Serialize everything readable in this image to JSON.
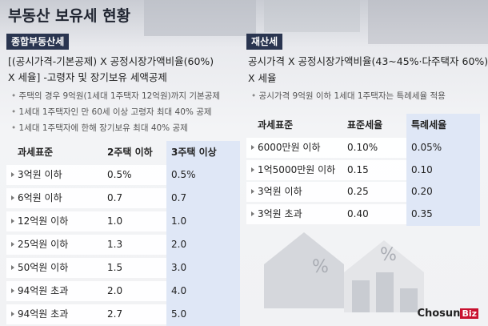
{
  "title": "부동산 보유세 현황",
  "left": {
    "tag": "종합부동산세",
    "formula": [
      "[(공시가격-기본공제) X 공정시장가액비율(60%)",
      "X 세율] -고령자 및 장기보유 세액공제"
    ],
    "notes": [
      "주택의 경우 9억원(1세대 1주택자 12억원)까지 기본공제",
      "1세대 1주택자인 만 60세 이상 고령자 최대 40% 공제",
      "1세대 1주택자에 한해 장기보유 최대 40% 공제"
    ],
    "table": {
      "header": [
        "과세표준",
        "2주택 이하",
        "3주택 이상"
      ],
      "rows": [
        [
          "3억원 이하",
          "0.5%",
          "0.5%"
        ],
        [
          "6억원 이하",
          "0.7",
          "0.7"
        ],
        [
          "12억원 이하",
          "1.0",
          "1.0"
        ],
        [
          "25억원 이하",
          "1.3",
          "2.0"
        ],
        [
          "50억원 이하",
          "1.5",
          "3.0"
        ],
        [
          "94억원 초과",
          "2.0",
          "4.0"
        ],
        [
          "94억원 초과",
          "2.7",
          "5.0"
        ]
      ]
    }
  },
  "right": {
    "tag": "재산세",
    "formula": [
      "공시가격 X 공정시장가액비율(43~45%·다주택자 60%)",
      "X 세율"
    ],
    "notes": [
      "공시가격 9억원 이하 1세대 1주택자는 특례세율 적용"
    ],
    "table": {
      "header": [
        "과세표준",
        "표준세율",
        "특례세율"
      ],
      "rows": [
        [
          "6000만원 이하",
          "0.10%",
          "0.05%"
        ],
        [
          "1억5000만원 이하",
          "0.15",
          "0.10"
        ],
        [
          "3억원 이하",
          "0.25",
          "0.20"
        ],
        [
          "3억원 초과",
          "0.40",
          "0.35"
        ]
      ]
    }
  },
  "logo": [
    "Chosun",
    "Biz"
  ]
}
